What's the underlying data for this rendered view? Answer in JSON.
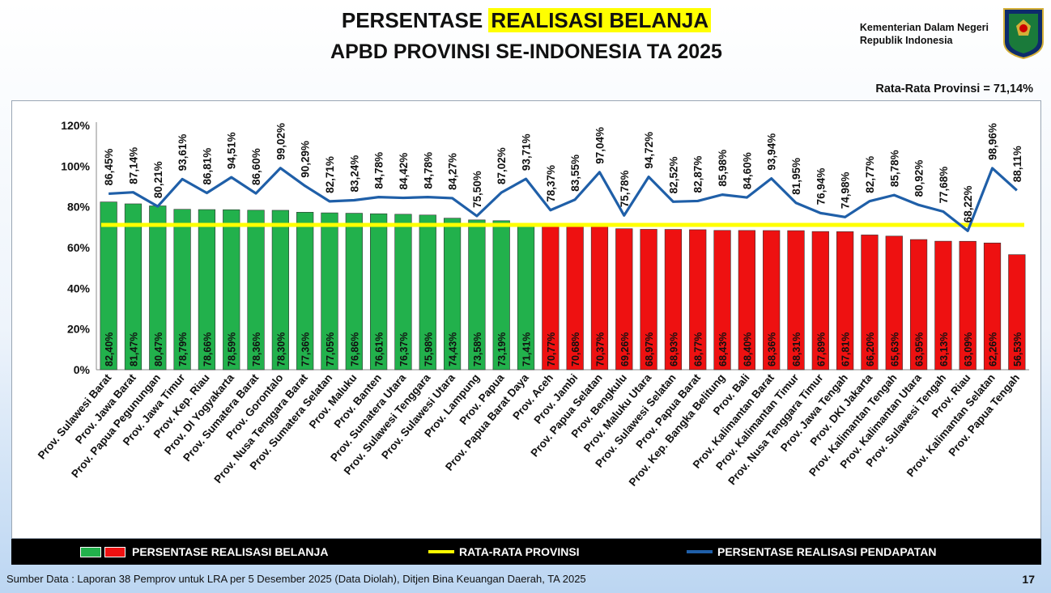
{
  "header": {
    "title_pre": "PERSENTASE ",
    "title_highlight": "REALISASI BELANJA",
    "title_line2": "APBD PROVINSI SE-INDONESIA TA 2025",
    "ministry_line1": "Kementerian Dalam Negeri",
    "ministry_line2": "Republik Indonesia"
  },
  "average_text": "Rata-Rata Provinsi = 71,14%",
  "chart_data": {
    "type": "bar",
    "categories": [
      "Prov. Sulawesi Barat",
      "Prov. Jawa Barat",
      "Prov. Papua Pegunungan",
      "Prov. Jawa Timur",
      "Prov. Kep. Riau",
      "Prov. DI Yogyakarta",
      "Prov. Sumatera Barat",
      "Prov. Gorontalo",
      "Prov. Nusa Tenggara Barat",
      "Prov. Sumatera Selatan",
      "Prov. Maluku",
      "Prov. Banten",
      "Prov. Sumatera Utara",
      "Prov. Sulawesi Tenggara",
      "Prov. Sulawesi Utara",
      "Prov. Lampung",
      "Prov. Papua",
      "Prov. Papua Barat Daya",
      "Prov. Aceh",
      "Prov. Jambi",
      "Prov. Papua Selatan",
      "Prov. Bengkulu",
      "Prov. Maluku Utara",
      "Prov. Sulawesi Selatan",
      "Prov. Papua Barat",
      "Prov. Kep. Bangka Belitung",
      "Prov. Bali",
      "Prov. Kalimantan Barat",
      "Prov. Kalimantan Timur",
      "Prov. Nusa Tenggara Timur",
      "Prov. Jawa Tengah",
      "Prov. DKI Jakarta",
      "Prov. Kalimantan Tengah",
      "Prov. Kalimantan Utara",
      "Prov. Sulawesi Tengah",
      "Prov. Riau",
      "Prov. Kalimantan Selatan",
      "Prov. Papua Tengah"
    ],
    "series": [
      {
        "name": "PERSENTASE REALISASI BELANJA",
        "type": "bar",
        "values": [
          82.4,
          81.47,
          80.47,
          78.79,
          78.66,
          78.59,
          78.36,
          78.3,
          77.36,
          77.05,
          76.86,
          76.61,
          76.37,
          75.98,
          74.43,
          73.58,
          73.19,
          71.41,
          70.77,
          70.68,
          70.37,
          69.26,
          68.97,
          68.93,
          68.77,
          68.43,
          68.4,
          68.36,
          68.31,
          67.89,
          67.81,
          66.2,
          65.63,
          63.95,
          63.13,
          63.09,
          62.26,
          56.53
        ],
        "labels": [
          "82,40%",
          "81,47%",
          "80,47%",
          "78,79%",
          "78,66%",
          "78,59%",
          "78,36%",
          "78,30%",
          "77,36%",
          "77,05%",
          "76,86%",
          "76,61%",
          "76,37%",
          "75,98%",
          "74,43%",
          "73,58%",
          "73,19%",
          "71,41%",
          "70,77%",
          "70,68%",
          "70,37%",
          "69,26%",
          "68,97%",
          "68,93%",
          "68,77%",
          "68,43%",
          "68,40%",
          "68,36%",
          "68,31%",
          "67,89%",
          "67,81%",
          "66,20%",
          "65,63%",
          "63,95%",
          "63,13%",
          "63,09%",
          "62,26%",
          "56,53%"
        ]
      },
      {
        "name": "RATA-RATA PROVINSI",
        "type": "line",
        "value": 71.14
      },
      {
        "name": "PERSENTASE REALISASI PENDAPATAN",
        "type": "line",
        "values": [
          86.45,
          87.14,
          80.21,
          93.61,
          86.81,
          94.51,
          86.6,
          99.02,
          90.29,
          82.71,
          83.24,
          84.78,
          84.42,
          84.78,
          84.27,
          75.5,
          87.02,
          93.71,
          78.37,
          83.55,
          97.04,
          75.78,
          94.72,
          82.52,
          82.87,
          85.98,
          84.6,
          93.94,
          81.95,
          76.94,
          74.98,
          82.77,
          85.78,
          80.92,
          77.68,
          68.22,
          98.96,
          88.11
        ],
        "labels": [
          "86,45%",
          "87,14%",
          "80,21%",
          "93,61%",
          "86,81%",
          "94,51%",
          "86,60%",
          "99,02%",
          "90,29%",
          "82,71%",
          "83,24%",
          "84,78%",
          "84,42%",
          "84,78%",
          "84,27%",
          "75,50%",
          "87,02%",
          "93,71%",
          "78,37%",
          "83,55%",
          "97,04%",
          "75,78%",
          "94,72%",
          "82,52%",
          "82,87%",
          "85,98%",
          "84,60%",
          "93,94%",
          "81,95%",
          "76,94%",
          "74,98%",
          "82,77%",
          "85,78%",
          "80,92%",
          "77,68%",
          "68,22%",
          "98,96%",
          "88,11%"
        ]
      }
    ],
    "y_ticks": [
      "0%",
      "20%",
      "40%",
      "60%",
      "80%",
      "100%",
      "120%"
    ],
    "ylim": [
      0,
      120
    ],
    "colors": {
      "above_average": "#22b14c",
      "below_average": "#ee1111",
      "average_line": "#ffff00",
      "revenue_line": "#1f5fa8"
    }
  },
  "legend": {
    "bars_label": "PERSENTASE REALISASI BELANJA",
    "avg_label": "RATA-RATA PROVINSI",
    "revenue_label": "PERSENTASE REALISASI PENDAPATAN"
  },
  "footer": {
    "source": "Sumber Data : Laporan 38 Pemprov untuk LRA per 5 Desember 2025 (Data Diolah), Ditjen Bina Keuangan Daerah, TA 2025",
    "page_number": "17"
  }
}
